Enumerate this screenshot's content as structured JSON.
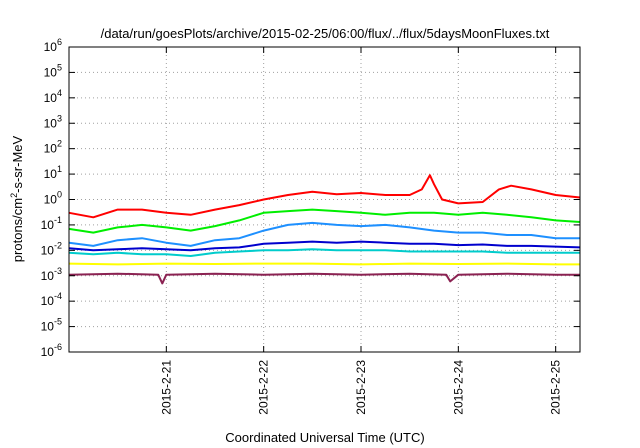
{
  "chart_data": {
    "type": "line",
    "title": "/data/run/goesPlots/archive/2015-02-25/06:00/flux/../flux/5daysMoonFluxes.txt",
    "xlabel": "Coordinated Universal Time (UTC)",
    "ylabel": {
      "pre": "protons/cm",
      "sup": "2",
      "post": "-s-sr-MeV"
    },
    "y_scale": "log",
    "ylim": [
      1e-06,
      1000000.0
    ],
    "y_ticks": [
      {
        "value": 1e-06,
        "base": "10",
        "exp": "-6"
      },
      {
        "value": 1e-05,
        "base": "10",
        "exp": "-5"
      },
      {
        "value": 0.0001,
        "base": "10",
        "exp": "-4"
      },
      {
        "value": 0.001,
        "base": "10",
        "exp": "-3"
      },
      {
        "value": 0.01,
        "base": "10",
        "exp": "-2"
      },
      {
        "value": 0.1,
        "base": "10",
        "exp": "-1"
      },
      {
        "value": 1.0,
        "base": "10",
        "exp": "0"
      },
      {
        "value": 10.0,
        "base": "10",
        "exp": "1"
      },
      {
        "value": 100.0,
        "base": "10",
        "exp": "2"
      },
      {
        "value": 1000.0,
        "base": "10",
        "exp": "3"
      },
      {
        "value": 10000.0,
        "base": "10",
        "exp": "4"
      },
      {
        "value": 100000.0,
        "base": "10",
        "exp": "5"
      },
      {
        "value": 1000000.0,
        "base": "10",
        "exp": "6"
      }
    ],
    "xlim": [
      "2015-02-20T00:00",
      "2015-02-25T06:00"
    ],
    "x_ticks": [
      "2015-2-21",
      "2015-2-22",
      "2015-2-23",
      "2015-2-24",
      "2015-2-25"
    ],
    "grid": true,
    "legend": "none",
    "series": [
      {
        "color": "#ff0000",
        "x": [
          "2015-02-20T00:00",
          "2015-02-20T06:00",
          "2015-02-20T12:00",
          "2015-02-20T18:00",
          "2015-02-21T00:00",
          "2015-02-21T06:00",
          "2015-02-21T12:00",
          "2015-02-21T18:00",
          "2015-02-22T00:00",
          "2015-02-22T06:00",
          "2015-02-22T12:00",
          "2015-02-22T18:00",
          "2015-02-23T00:00",
          "2015-02-23T06:00",
          "2015-02-23T12:00",
          "2015-02-23T15:00",
          "2015-02-23T17:00",
          "2015-02-23T18:00",
          "2015-02-23T20:00",
          "2015-02-24T00:00",
          "2015-02-24T06:00",
          "2015-02-24T10:00",
          "2015-02-24T13:00",
          "2015-02-24T18:00",
          "2015-02-25T00:00",
          "2015-02-25T06:00"
        ],
        "y": [
          0.3,
          0.2,
          0.4,
          0.4,
          0.3,
          0.25,
          0.4,
          0.6,
          1.0,
          1.5,
          2.0,
          1.6,
          1.8,
          1.5,
          1.5,
          2.5,
          9.0,
          4.0,
          1.0,
          0.7,
          0.8,
          2.5,
          3.5,
          2.5,
          1.5,
          1.2
        ]
      },
      {
        "color": "#00ee00",
        "x": [
          "2015-02-20T00:00",
          "2015-02-20T06:00",
          "2015-02-20T12:00",
          "2015-02-20T18:00",
          "2015-02-21T00:00",
          "2015-02-21T06:00",
          "2015-02-21T12:00",
          "2015-02-21T18:00",
          "2015-02-22T00:00",
          "2015-02-22T06:00",
          "2015-02-22T12:00",
          "2015-02-22T18:00",
          "2015-02-23T00:00",
          "2015-02-23T06:00",
          "2015-02-23T12:00",
          "2015-02-23T18:00",
          "2015-02-24T00:00",
          "2015-02-24T06:00",
          "2015-02-24T12:00",
          "2015-02-24T18:00",
          "2015-02-25T00:00",
          "2015-02-25T06:00"
        ],
        "y": [
          0.07,
          0.05,
          0.08,
          0.1,
          0.08,
          0.06,
          0.09,
          0.15,
          0.3,
          0.35,
          0.4,
          0.35,
          0.3,
          0.25,
          0.3,
          0.3,
          0.25,
          0.3,
          0.25,
          0.2,
          0.15,
          0.13
        ]
      },
      {
        "color": "#1e90ff",
        "x": [
          "2015-02-20T00:00",
          "2015-02-20T06:00",
          "2015-02-20T12:00",
          "2015-02-20T18:00",
          "2015-02-21T00:00",
          "2015-02-21T06:00",
          "2015-02-21T12:00",
          "2015-02-21T18:00",
          "2015-02-22T00:00",
          "2015-02-22T06:00",
          "2015-02-22T12:00",
          "2015-02-22T18:00",
          "2015-02-23T00:00",
          "2015-02-23T06:00",
          "2015-02-23T12:00",
          "2015-02-23T18:00",
          "2015-02-24T00:00",
          "2015-02-24T06:00",
          "2015-02-24T12:00",
          "2015-02-24T18:00",
          "2015-02-25T00:00",
          "2015-02-25T06:00"
        ],
        "y": [
          0.02,
          0.015,
          0.025,
          0.03,
          0.02,
          0.015,
          0.025,
          0.03,
          0.06,
          0.1,
          0.12,
          0.1,
          0.09,
          0.1,
          0.08,
          0.06,
          0.05,
          0.05,
          0.04,
          0.04,
          0.03,
          0.03
        ]
      },
      {
        "color": "#0000cd",
        "x": [
          "2015-02-20T00:00",
          "2015-02-20T06:00",
          "2015-02-20T12:00",
          "2015-02-20T18:00",
          "2015-02-21T00:00",
          "2015-02-21T06:00",
          "2015-02-21T12:00",
          "2015-02-21T18:00",
          "2015-02-22T00:00",
          "2015-02-22T06:00",
          "2015-02-22T12:00",
          "2015-02-22T18:00",
          "2015-02-23T00:00",
          "2015-02-23T06:00",
          "2015-02-23T12:00",
          "2015-02-23T18:00",
          "2015-02-24T00:00",
          "2015-02-24T06:00",
          "2015-02-24T12:00",
          "2015-02-24T18:00",
          "2015-02-25T00:00",
          "2015-02-25T06:00"
        ],
        "y": [
          0.012,
          0.01,
          0.011,
          0.012,
          0.011,
          0.01,
          0.012,
          0.013,
          0.018,
          0.02,
          0.022,
          0.02,
          0.022,
          0.02,
          0.018,
          0.018,
          0.016,
          0.017,
          0.015,
          0.015,
          0.014,
          0.013
        ]
      },
      {
        "color": "#00cccc",
        "x": [
          "2015-02-20T00:00",
          "2015-02-20T06:00",
          "2015-02-20T12:00",
          "2015-02-20T18:00",
          "2015-02-21T00:00",
          "2015-02-21T06:00",
          "2015-02-21T12:00",
          "2015-02-21T18:00",
          "2015-02-22T00:00",
          "2015-02-22T06:00",
          "2015-02-22T12:00",
          "2015-02-22T18:00",
          "2015-02-23T00:00",
          "2015-02-23T06:00",
          "2015-02-23T12:00",
          "2015-02-23T18:00",
          "2015-02-24T00:00",
          "2015-02-24T06:00",
          "2015-02-24T12:00",
          "2015-02-24T18:00",
          "2015-02-25T00:00",
          "2015-02-25T06:00"
        ],
        "y": [
          0.008,
          0.007,
          0.008,
          0.007,
          0.007,
          0.006,
          0.008,
          0.009,
          0.01,
          0.01,
          0.011,
          0.01,
          0.01,
          0.01,
          0.009,
          0.009,
          0.009,
          0.009,
          0.008,
          0.008,
          0.008,
          0.008
        ]
      },
      {
        "color": "#ffff00",
        "x": [
          "2015-02-20T00:00",
          "2015-02-20T12:00",
          "2015-02-21T00:00",
          "2015-02-21T12:00",
          "2015-02-22T00:00",
          "2015-02-22T12:00",
          "2015-02-23T00:00",
          "2015-02-23T12:00",
          "2015-02-24T00:00",
          "2015-02-24T12:00",
          "2015-02-25T00:00",
          "2015-02-25T06:00"
        ],
        "y": [
          0.003,
          0.0028,
          0.003,
          0.0029,
          0.003,
          0.003,
          0.0028,
          0.003,
          0.0029,
          0.003,
          0.0028,
          0.0028
        ]
      },
      {
        "color": "#8b2252",
        "x": [
          "2015-02-20T00:00",
          "2015-02-20T12:00",
          "2015-02-20T22:00",
          "2015-02-20T23:00",
          "2015-02-21T00:00",
          "2015-02-21T12:00",
          "2015-02-22T00:00",
          "2015-02-22T12:00",
          "2015-02-23T00:00",
          "2015-02-23T12:00",
          "2015-02-23T21:00",
          "2015-02-23T22:00",
          "2015-02-24T00:00",
          "2015-02-24T12:00",
          "2015-02-25T00:00",
          "2015-02-25T06:00"
        ],
        "y": [
          0.0011,
          0.0012,
          0.0011,
          0.0005,
          0.0011,
          0.0012,
          0.0011,
          0.0012,
          0.0011,
          0.0012,
          0.0011,
          0.0006,
          0.0011,
          0.0012,
          0.0011,
          0.0011
        ]
      }
    ]
  }
}
